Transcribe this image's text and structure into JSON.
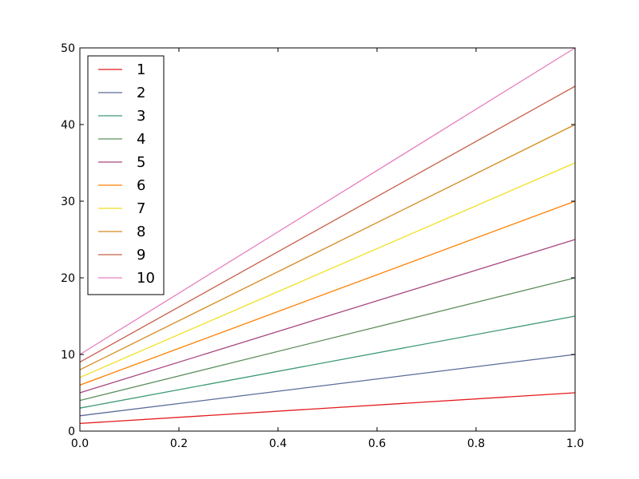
{
  "chart_data": {
    "type": "line",
    "title": "",
    "xlabel": "",
    "ylabel": "",
    "xlim": [
      0.0,
      1.0
    ],
    "ylim": [
      0,
      50
    ],
    "xticks": [
      "0.0",
      "0.2",
      "0.4",
      "0.6",
      "0.8",
      "1.0"
    ],
    "yticks": [
      "0",
      "10",
      "20",
      "30",
      "40",
      "50"
    ],
    "grid": false,
    "legend_position": "top-left",
    "x": [
      0.0,
      1.0
    ],
    "series": [
      {
        "name": "1",
        "color": "#e41a1c",
        "values": [
          1,
          5
        ]
      },
      {
        "name": "2",
        "color": "#5a6b9b",
        "values": [
          2,
          10
        ]
      },
      {
        "name": "3",
        "color": "#3c9a73",
        "values": [
          3,
          15
        ]
      },
      {
        "name": "4",
        "color": "#5e8f5e",
        "values": [
          4,
          20
        ]
      },
      {
        "name": "5",
        "color": "#a8477f",
        "values": [
          5,
          25
        ]
      },
      {
        "name": "6",
        "color": "#ff7f00",
        "values": [
          6,
          30
        ]
      },
      {
        "name": "7",
        "color": "#f0e020",
        "values": [
          7,
          35
        ]
      },
      {
        "name": "8",
        "color": "#d58a1f",
        "values": [
          8,
          40
        ]
      },
      {
        "name": "9",
        "color": "#c8604a",
        "values": [
          9,
          45
        ]
      },
      {
        "name": "10",
        "color": "#e77fbd",
        "values": [
          10,
          50
        ]
      }
    ]
  }
}
